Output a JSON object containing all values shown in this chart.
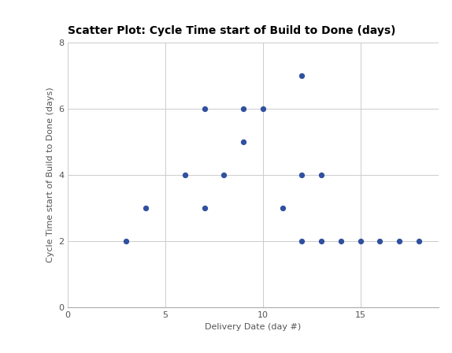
{
  "title": "Scatter Plot: Cycle Time start of Build to Done (days)",
  "xlabel": "Delivery Date (day #)",
  "ylabel": "Cycle Time start of Build to Done (days)",
  "x": [
    3,
    4,
    6,
    7,
    7,
    8,
    9,
    9,
    10,
    11,
    12,
    12,
    12,
    13,
    13,
    14,
    15,
    16,
    17,
    18
  ],
  "y": [
    2,
    3,
    4,
    6,
    3,
    4,
    6,
    5,
    6,
    3,
    7,
    4,
    2,
    4,
    2,
    2,
    2,
    2,
    2,
    2
  ],
  "dot_color": "#3050a0",
  "dot_size": 18,
  "xlim": [
    0,
    19
  ],
  "ylim": [
    0,
    8
  ],
  "xticks": [
    0,
    5,
    10,
    15
  ],
  "yticks": [
    0,
    2,
    4,
    6,
    8
  ],
  "grid_color": "#cccccc",
  "bg_color": "#ffffff",
  "title_fontsize": 10,
  "label_fontsize": 8,
  "tick_fontsize": 8
}
